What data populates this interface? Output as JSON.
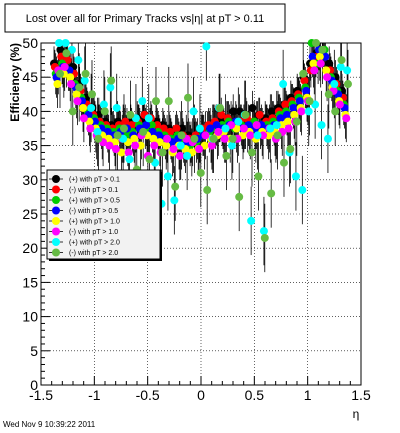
{
  "chart_data": {
    "type": "scatter",
    "title": "Lost over all for Primary Tracks vs|η| at pT > 0.11",
    "xlabel": "η",
    "ylabel": "Efficiency (%)",
    "xlim": [
      -1.5,
      1.5
    ],
    "ylim": [
      0,
      50
    ],
    "xticks": [
      -1.5,
      -1,
      -0.5,
      0,
      0.5,
      1,
      1.5
    ],
    "yticks": [
      0,
      5,
      10,
      15,
      20,
      25,
      30,
      35,
      40,
      45,
      50
    ],
    "xtick_labels": [
      "-1.5",
      "-1",
      "-0.5",
      "0",
      "0.5",
      "1",
      "1.5"
    ],
    "ytick_labels": [
      "0",
      "5",
      "10",
      "15",
      "20",
      "25",
      "30",
      "35",
      "40",
      "45",
      "50"
    ],
    "grid": true,
    "legend_position": "left-middle",
    "timestamp": "Wed Nov  9 10:39:22 2011",
    "x": [
      -1.35,
      -1.29,
      -1.23,
      -1.17,
      -1.11,
      -1.05,
      -0.99,
      -0.93,
      -0.87,
      -0.81,
      -0.75,
      -0.69,
      -0.63,
      -0.57,
      -0.51,
      -0.45,
      -0.39,
      -0.33,
      -0.27,
      -0.21,
      -0.15,
      -0.09,
      -0.03,
      0.03,
      0.09,
      0.15,
      0.21,
      0.27,
      0.33,
      0.39,
      0.45,
      0.51,
      0.57,
      0.63,
      0.69,
      0.75,
      0.81,
      0.87,
      0.93,
      0.99,
      1.05,
      1.11,
      1.17,
      1.23,
      1.29,
      1.35
    ],
    "series": [
      {
        "name": "(+) with pT > 0.1",
        "color": "#000000",
        "error": 2.5,
        "values": [
          47.0,
          49.0,
          48.5,
          46.5,
          44.0,
          42.0,
          40.5,
          39.5,
          38.5,
          38.0,
          38.5,
          38.0,
          38.5,
          39.0,
          39.0,
          38.0,
          38.5,
          38.0,
          37.5,
          37.0,
          37.5,
          36.5,
          36.0,
          37.0,
          37.5,
          38.0,
          38.5,
          39.0,
          40.0,
          40.0,
          39.5,
          40.5,
          39.5,
          39.0,
          40.0,
          40.5,
          41.0,
          42.0,
          43.0,
          45.0,
          47.0,
          48.5,
          49.0,
          47.0,
          45.0,
          43.0
        ]
      },
      {
        "name": "(-) with pT > 0.1",
        "color": "#ff0000",
        "error": 2.5,
        "values": [
          46.5,
          48.0,
          47.5,
          45.5,
          43.0,
          41.0,
          39.5,
          38.5,
          38.0,
          37.5,
          38.0,
          38.5,
          38.0,
          38.5,
          39.5,
          39.0,
          38.0,
          37.5,
          37.0,
          37.5,
          36.5,
          36.0,
          36.5,
          37.5,
          38.0,
          38.5,
          39.5,
          39.0,
          38.0,
          38.5,
          39.0,
          38.5,
          39.5,
          38.5,
          39.0,
          40.0,
          41.0,
          41.5,
          42.5,
          44.5,
          46.0,
          48.0,
          49.0,
          46.0,
          44.0,
          42.0
        ]
      },
      {
        "name": "(+) with pT > 0.5",
        "color": "#00cc00",
        "error": 3.0,
        "values": [
          45.5,
          47.0,
          46.0,
          44.0,
          42.0,
          40.0,
          39.0,
          38.0,
          37.5,
          37.0,
          37.5,
          36.5,
          37.0,
          38.0,
          37.5,
          38.0,
          37.0,
          36.5,
          36.0,
          36.5,
          35.5,
          35.0,
          35.5,
          36.5,
          37.0,
          37.5,
          38.0,
          38.5,
          37.5,
          38.0,
          37.0,
          38.5,
          37.5,
          38.0,
          38.5,
          39.5,
          40.0,
          41.0,
          42.0,
          43.5,
          50.0,
          47.0,
          49.0,
          45.0,
          43.0,
          41.0
        ]
      },
      {
        "name": "(-) with pT > 0.5",
        "color": "#0000ff",
        "error": 3.0,
        "values": [
          45.0,
          46.5,
          46.0,
          43.5,
          41.5,
          39.5,
          38.5,
          37.5,
          37.0,
          36.5,
          37.0,
          37.5,
          36.5,
          37.5,
          38.0,
          37.0,
          36.5,
          36.0,
          35.5,
          36.0,
          35.0,
          35.5,
          36.0,
          36.5,
          37.5,
          38.0,
          37.5,
          38.0,
          38.5,
          37.5,
          38.0,
          37.5,
          38.0,
          37.5,
          38.0,
          39.0,
          39.5,
          40.5,
          41.5,
          43.0,
          48.0,
          49.0,
          48.0,
          44.5,
          42.5,
          40.5
        ]
      },
      {
        "name": "(+) with pT > 1.0",
        "color": "#ffff00",
        "error": 3.5,
        "values": [
          44.0,
          45.5,
          45.0,
          42.5,
          40.5,
          38.5,
          37.5,
          36.5,
          36.0,
          35.5,
          34.0,
          35.5,
          36.0,
          35.0,
          36.5,
          36.0,
          35.5,
          35.0,
          34.0,
          35.0,
          34.5,
          34.0,
          34.5,
          35.0,
          36.0,
          36.5,
          37.0,
          36.0,
          37.5,
          36.5,
          37.0,
          36.0,
          37.0,
          36.5,
          37.0,
          38.0,
          38.5,
          39.5,
          40.5,
          42.0,
          47.0,
          48.0,
          46.0,
          43.5,
          41.5,
          39.5
        ]
      },
      {
        "name": "(-) with pT > 1.0",
        "color": "#ff00ff",
        "error": 3.5,
        "values": [
          46.0,
          46.5,
          44.0,
          41.5,
          39.0,
          37.5,
          36.5,
          35.5,
          35.0,
          34.5,
          36.0,
          34.0,
          35.0,
          36.5,
          33.5,
          35.0,
          34.0,
          36.0,
          34.5,
          33.5,
          36.0,
          35.5,
          34.5,
          36.5,
          35.0,
          37.0,
          36.0,
          38.0,
          36.0,
          37.5,
          36.5,
          38.0,
          36.5,
          37.5,
          36.0,
          37.0,
          37.5,
          38.5,
          40.0,
          41.5,
          46.0,
          47.0,
          45.0,
          43.0,
          41.0,
          39.0
        ]
      },
      {
        "name": "(+) with pT > 2.0",
        "color": "#00ffff",
        "error": 5.0,
        "values": [
          50.0,
          50.0,
          49.0,
          47.5,
          44.5,
          40.5,
          37.0,
          41.0,
          43.5,
          40.5,
          36.0,
          33.0,
          39.0,
          41.5,
          39.0,
          32.5,
          26.5,
          30.5,
          27.0,
          35.0,
          33.5,
          40.0,
          37.5,
          49.5,
          36.0,
          40.5,
          37.5,
          35.0,
          38.5,
          39.5,
          24.0,
          36.5,
          22.5,
          37.5,
          38.0,
          44.0,
          34.0,
          30.5,
          28.5,
          40.0,
          41.0,
          38.0,
          36.0,
          44.0,
          46.5,
          46.0
        ]
      },
      {
        "name": "(-) with pT > 2.0",
        "color": "#66bb44",
        "error": 5.0,
        "values": [
          45.5,
          48.5,
          40.0,
          43.5,
          45.5,
          42.5,
          36.0,
          40.0,
          44.5,
          36.5,
          37.5,
          39.5,
          31.5,
          37.0,
          33.0,
          41.5,
          34.0,
          41.5,
          29.0,
          36.5,
          42.0,
          36.0,
          31.0,
          28.5,
          36.0,
          40.5,
          33.5,
          36.0,
          27.5,
          39.5,
          34.0,
          30.5,
          21.5,
          28.0,
          36.5,
          32.5,
          34.5,
          38.5,
          45.5,
          41.5,
          50.0,
          49.0,
          42.5,
          40.0,
          47.5,
          44.0
        ]
      }
    ]
  }
}
